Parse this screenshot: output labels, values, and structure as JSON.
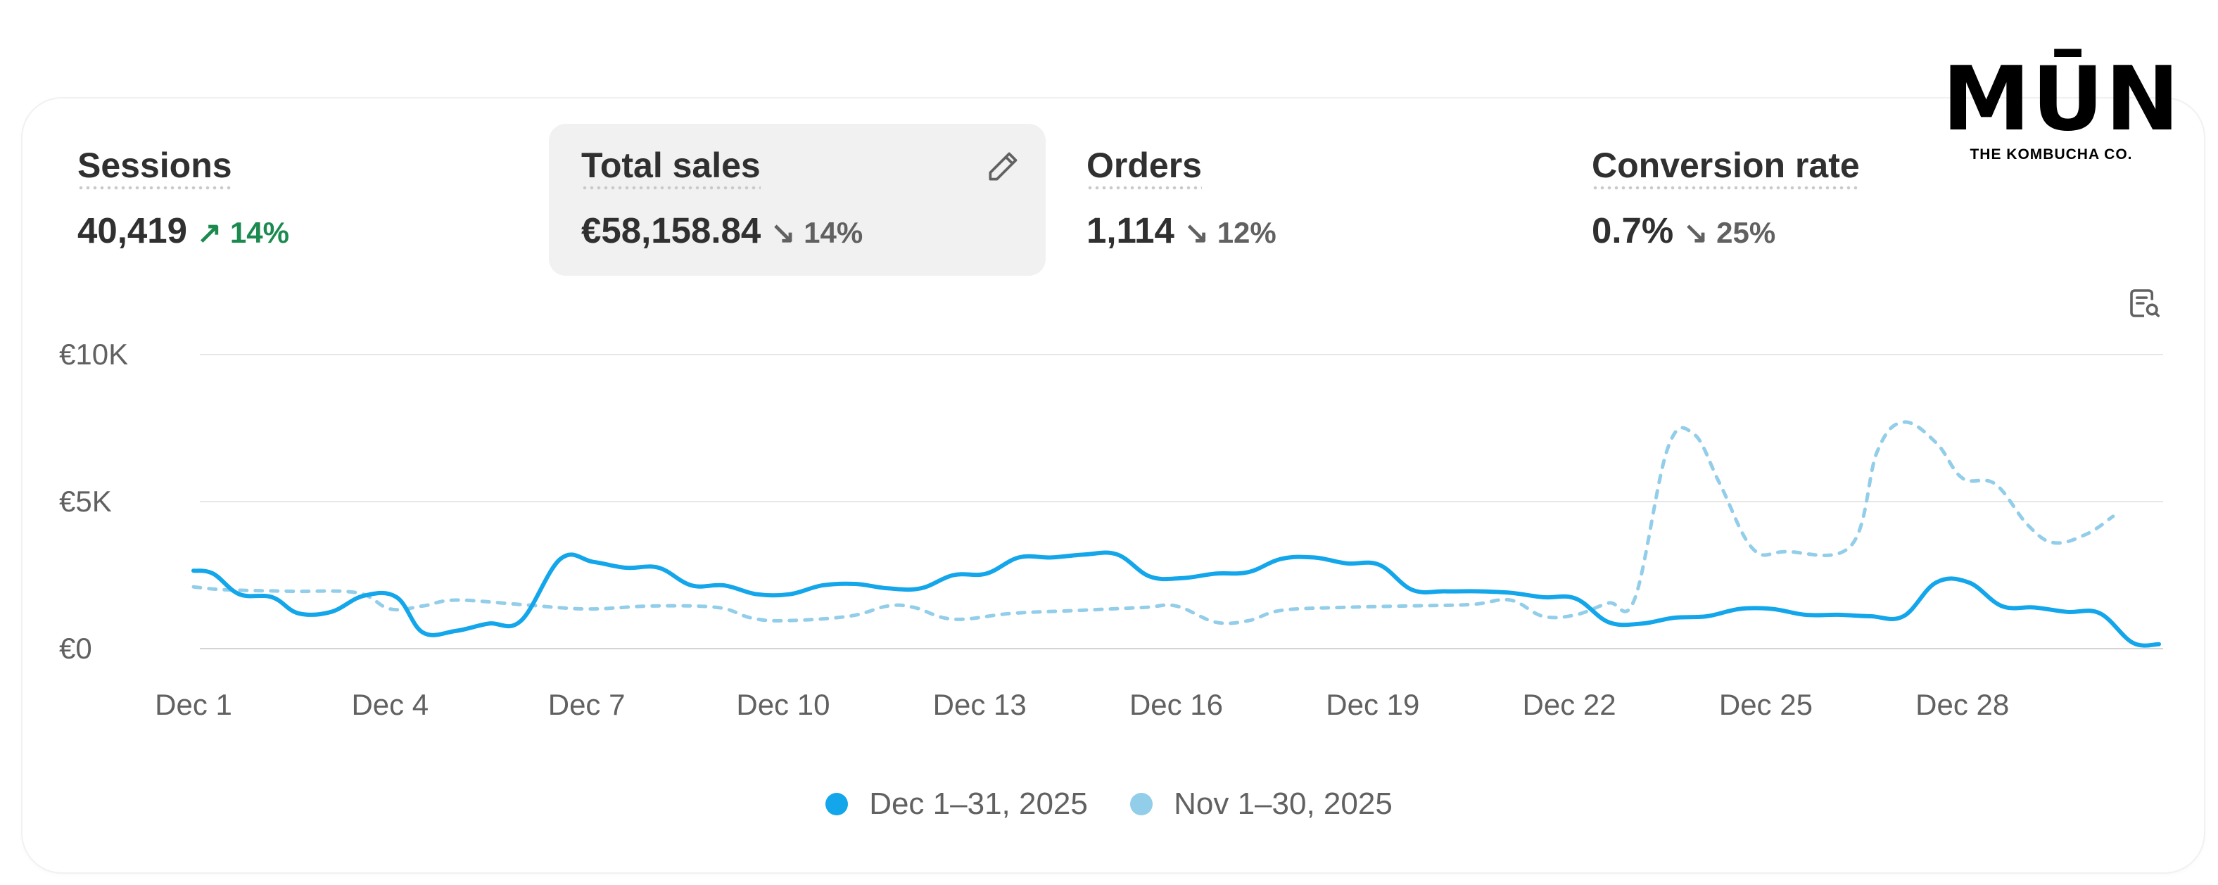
{
  "brand": {
    "name": "MŪN",
    "tagline": "THE KOMBUCHA CO."
  },
  "metrics": [
    {
      "label": "Sessions",
      "value": "40,419",
      "change": "14%",
      "direction": "up"
    },
    {
      "label": "Total sales",
      "value": "€58,158.84",
      "change": "14%",
      "direction": "down",
      "active": true
    },
    {
      "label": "Orders",
      "value": "1,114",
      "change": "12%",
      "direction": "down"
    },
    {
      "label": "Conversion rate",
      "value": "0.7%",
      "change": "25%",
      "direction": "down"
    }
  ],
  "icons": {
    "edit": "pencil-icon",
    "analyze": "search-report-icon",
    "arrow_up": "arrow-up-right-icon",
    "arrow_down": "arrow-down-right-icon"
  },
  "colors": {
    "current": "#13a6ea",
    "previous": "#92cde9",
    "up": "#1c8a4f",
    "grid": "#e3e3e3"
  },
  "chart_data": {
    "type": "line",
    "x_tick_labels": [
      "Dec 1",
      "Dec 4",
      "Dec 7",
      "Dec 10",
      "Dec 13",
      "Dec 16",
      "Dec 19",
      "Dec 22",
      "Dec 25",
      "Dec 28"
    ],
    "y_tick_labels": [
      "€10K",
      "€5K",
      "€0"
    ],
    "ylim": [
      0,
      10000
    ],
    "grid": true,
    "legend": "bottom-center",
    "series": [
      {
        "name": "Dec 1–31, 2025",
        "style": "solid",
        "color": "#13a6ea",
        "points": [
          [
            1,
            2650
          ],
          [
            1.3,
            2550
          ],
          [
            1.7,
            1850
          ],
          [
            2.2,
            1750
          ],
          [
            2.6,
            1200
          ],
          [
            3.1,
            1250
          ],
          [
            3.6,
            1800
          ],
          [
            4.1,
            1750
          ],
          [
            4.5,
            550
          ],
          [
            5,
            600
          ],
          [
            5.5,
            850
          ],
          [
            6,
            950
          ],
          [
            6.6,
            3050
          ],
          [
            7.1,
            2950
          ],
          [
            7.6,
            2750
          ],
          [
            8.1,
            2750
          ],
          [
            8.6,
            2150
          ],
          [
            9.1,
            2150
          ],
          [
            9.6,
            1850
          ],
          [
            10.1,
            1850
          ],
          [
            10.6,
            2150
          ],
          [
            11.1,
            2200
          ],
          [
            11.6,
            2050
          ],
          [
            12.1,
            2050
          ],
          [
            12.6,
            2500
          ],
          [
            13.1,
            2550
          ],
          [
            13.6,
            3100
          ],
          [
            14.1,
            3100
          ],
          [
            14.6,
            3200
          ],
          [
            15.1,
            3200
          ],
          [
            15.6,
            2450
          ],
          [
            16.1,
            2400
          ],
          [
            16.6,
            2550
          ],
          [
            17.1,
            2600
          ],
          [
            17.6,
            3050
          ],
          [
            18.1,
            3100
          ],
          [
            18.6,
            2900
          ],
          [
            19.1,
            2850
          ],
          [
            19.6,
            2000
          ],
          [
            20.1,
            1950
          ],
          [
            20.6,
            1950
          ],
          [
            21.1,
            1900
          ],
          [
            21.6,
            1750
          ],
          [
            22.1,
            1700
          ],
          [
            22.6,
            900
          ],
          [
            23.1,
            850
          ],
          [
            23.6,
            1050
          ],
          [
            24.1,
            1100
          ],
          [
            24.6,
            1350
          ],
          [
            25.1,
            1350
          ],
          [
            25.6,
            1150
          ],
          [
            26.1,
            1150
          ],
          [
            26.6,
            1100
          ],
          [
            27.1,
            1100
          ],
          [
            27.6,
            2250
          ],
          [
            28.1,
            2250
          ],
          [
            28.6,
            1450
          ],
          [
            29.1,
            1400
          ],
          [
            29.6,
            1250
          ],
          [
            30.1,
            1200
          ],
          [
            30.6,
            200
          ],
          [
            31,
            150
          ]
        ]
      },
      {
        "name": "Nov 1–30, 2025",
        "style": "dashed",
        "color": "#92cde9",
        "points": [
          [
            1,
            2100
          ],
          [
            1.5,
            2000
          ],
          [
            2.5,
            1950
          ],
          [
            3.5,
            1900
          ],
          [
            4,
            1350
          ],
          [
            4.5,
            1450
          ],
          [
            5,
            1650
          ],
          [
            6,
            1500
          ],
          [
            7,
            1350
          ],
          [
            8,
            1450
          ],
          [
            9,
            1400
          ],
          [
            9.5,
            1050
          ],
          [
            10,
            950
          ],
          [
            11,
            1100
          ],
          [
            11.6,
            1450
          ],
          [
            12,
            1400
          ],
          [
            12.6,
            1000
          ],
          [
            13.5,
            1200
          ],
          [
            14.5,
            1300
          ],
          [
            15.5,
            1400
          ],
          [
            16,
            1450
          ],
          [
            16.6,
            900
          ],
          [
            17.1,
            950
          ],
          [
            17.6,
            1300
          ],
          [
            18.5,
            1400
          ],
          [
            19.5,
            1450
          ],
          [
            20.5,
            1500
          ],
          [
            21.1,
            1650
          ],
          [
            21.6,
            1100
          ],
          [
            22.1,
            1150
          ],
          [
            22.6,
            1550
          ],
          [
            23,
            1700
          ],
          [
            23.5,
            6800
          ],
          [
            23.9,
            7300
          ],
          [
            24.3,
            5600
          ],
          [
            24.8,
            3400
          ],
          [
            25.3,
            3300
          ],
          [
            26.3,
            3500
          ],
          [
            26.7,
            6700
          ],
          [
            27.1,
            7700
          ],
          [
            27.6,
            7000
          ],
          [
            28,
            5800
          ],
          [
            28.5,
            5600
          ],
          [
            29,
            4200
          ],
          [
            29.4,
            3600
          ],
          [
            29.9,
            3900
          ],
          [
            30.3,
            4500
          ]
        ]
      }
    ]
  }
}
